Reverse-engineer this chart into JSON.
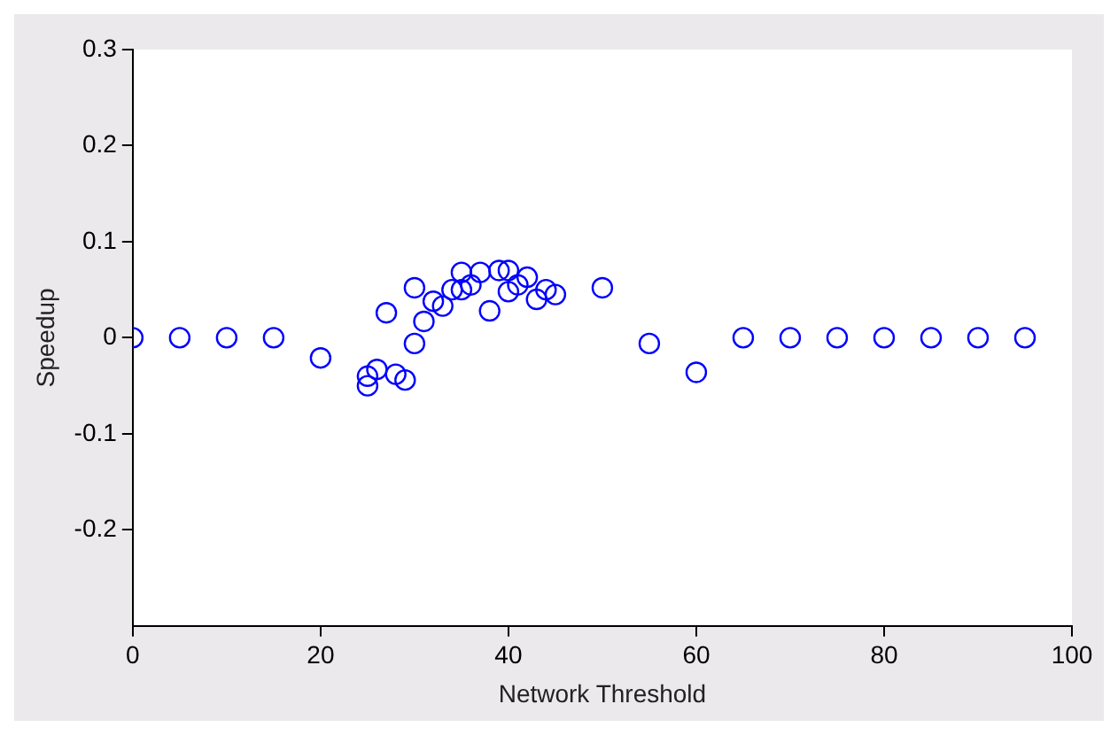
{
  "chart_data": {
    "type": "scatter",
    "xlabel": "Network Threshold",
    "ylabel": "Speedup",
    "marker": "circle",
    "grid": false,
    "legend": false,
    "xlim": [
      0,
      100
    ],
    "xticks": [
      0,
      20,
      40,
      60,
      80,
      100
    ],
    "ylim": [
      -0.3,
      0.3
    ],
    "yticks": [
      -0.2,
      -0.1,
      0,
      0.1,
      0.2,
      0.3
    ],
    "series": [
      {
        "color": "#0000ff",
        "x": [
          0,
          5,
          10,
          15,
          20,
          25,
          25,
          26,
          27,
          28,
          29,
          30,
          30,
          31,
          32,
          33,
          34,
          35,
          35,
          36,
          37,
          38,
          39,
          40,
          40,
          41,
          42,
          43,
          44,
          45,
          50,
          55,
          60,
          65,
          70,
          75,
          80,
          85,
          90,
          95
        ],
        "values": [
          0,
          0,
          0,
          0,
          -0.021,
          -0.05,
          -0.04,
          -0.033,
          0.026,
          -0.038,
          -0.044,
          0.052,
          -0.006,
          0.017,
          0.038,
          0.033,
          0.05,
          0.068,
          0.05,
          0.055,
          0.068,
          0.028,
          0.07,
          0.07,
          0.048,
          0.055,
          0.063,
          0.04,
          0.05,
          0.045,
          0.052,
          -0.006,
          -0.036,
          0,
          0,
          0,
          0,
          0,
          0,
          0
        ]
      }
    ]
  }
}
